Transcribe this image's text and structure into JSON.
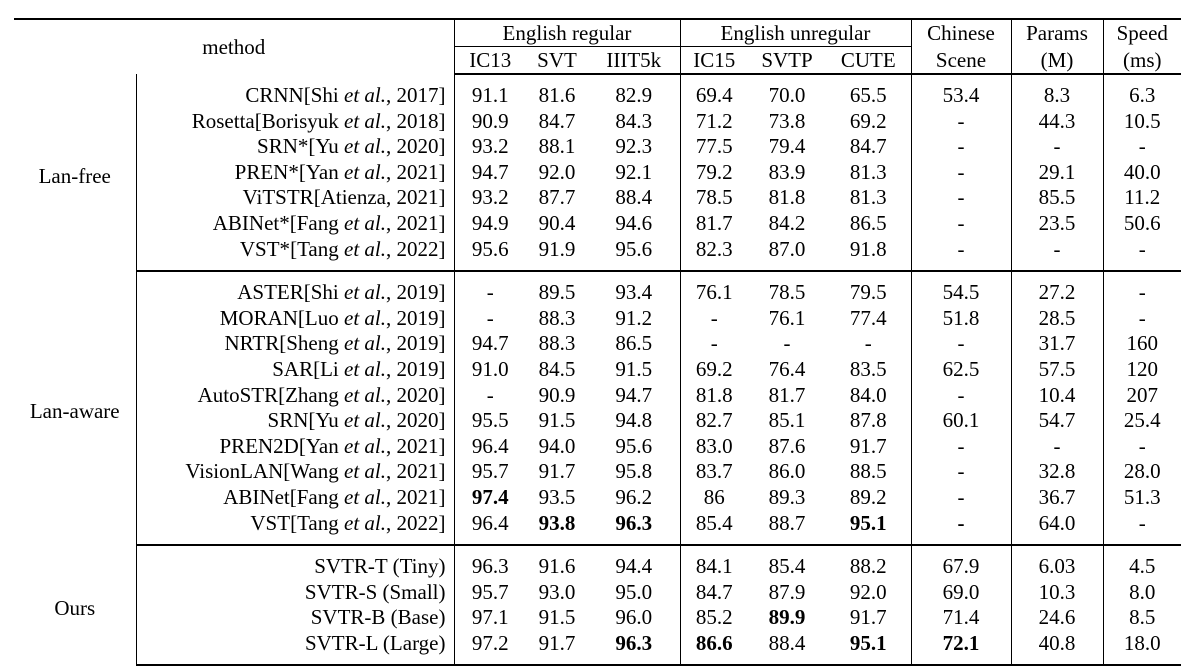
{
  "header": {
    "method": "method",
    "groups": [
      {
        "label": "English regular",
        "cols": [
          "IC13",
          "SVT",
          "IIIT5k"
        ]
      },
      {
        "label": "English unregular",
        "cols": [
          "IC15",
          "SVTP",
          "CUTE"
        ]
      }
    ],
    "chinese": [
      "Chinese",
      "Scene"
    ],
    "params": [
      "Params",
      "(M)"
    ],
    "speed": [
      "Speed",
      "(ms)"
    ]
  },
  "sections": [
    {
      "label": "Lan-free",
      "rows": [
        {
          "name": "CRNN",
          "author": "Shi",
          "etal": true,
          "year": "2017",
          "values": [
            "91.1",
            "81.6",
            "82.9",
            "69.4",
            "70.0",
            "65.5",
            "53.4",
            "8.3",
            "6.3"
          ],
          "bold": []
        },
        {
          "name": "Rosetta",
          "author": "Borisyuk",
          "etal": true,
          "year": "2018",
          "values": [
            "90.9",
            "84.7",
            "84.3",
            "71.2",
            "73.8",
            "69.2",
            "-",
            "44.3",
            "10.5"
          ],
          "bold": []
        },
        {
          "name": "SRN*",
          "author": "Yu",
          "etal": true,
          "year": "2020",
          "values": [
            "93.2",
            "88.1",
            "92.3",
            "77.5",
            "79.4",
            "84.7",
            "-",
            "-",
            "-"
          ],
          "bold": []
        },
        {
          "name": "PREN*",
          "author": "Yan",
          "etal": true,
          "year": "2021",
          "values": [
            "94.7",
            "92.0",
            "92.1",
            "79.2",
            "83.9",
            "81.3",
            "-",
            "29.1",
            "40.0"
          ],
          "bold": []
        },
        {
          "name": "ViTSTR",
          "author": "Atienza",
          "etal": false,
          "year": "2021",
          "values": [
            "93.2",
            "87.7",
            "88.4",
            "78.5",
            "81.8",
            "81.3",
            "-",
            "85.5",
            "11.2"
          ],
          "bold": []
        },
        {
          "name": "ABINet*",
          "author": "Fang",
          "etal": true,
          "year": "2021",
          "values": [
            "94.9",
            "90.4",
            "94.6",
            "81.7",
            "84.2",
            "86.5",
            "-",
            "23.5",
            "50.6"
          ],
          "bold": []
        },
        {
          "name": "VST*",
          "author": "Tang",
          "etal": true,
          "year": "2022",
          "values": [
            "95.6",
            "91.9",
            "95.6",
            "82.3",
            "87.0",
            "91.8",
            "-",
            "-",
            "-"
          ],
          "bold": []
        }
      ]
    },
    {
      "label": "Lan-aware",
      "rows": [
        {
          "name": "ASTER",
          "author": "Shi",
          "etal": true,
          "year": "2019",
          "values": [
            "-",
            "89.5",
            "93.4",
            "76.1",
            "78.5",
            "79.5",
            "54.5",
            "27.2",
            "-"
          ],
          "bold": []
        },
        {
          "name": "MORAN",
          "author": "Luo",
          "etal": true,
          "year": "2019",
          "values": [
            "-",
            "88.3",
            "91.2",
            "-",
            "76.1",
            "77.4",
            "51.8",
            "28.5",
            "-"
          ],
          "bold": []
        },
        {
          "name": "NRTR",
          "author": "Sheng",
          "etal": true,
          "year": "2019",
          "values": [
            "94.7",
            "88.3",
            "86.5",
            "-",
            "-",
            "-",
            "-",
            "31.7",
            "160"
          ],
          "bold": []
        },
        {
          "name": "SAR",
          "author": "Li",
          "etal": true,
          "year": "2019",
          "values": [
            "91.0",
            "84.5",
            "91.5",
            "69.2",
            "76.4",
            "83.5",
            "62.5",
            "57.5",
            "120"
          ],
          "bold": []
        },
        {
          "name": "AutoSTR",
          "author": "Zhang",
          "etal": true,
          "year": "2020",
          "values": [
            "-",
            "90.9",
            "94.7",
            "81.8",
            "81.7",
            "84.0",
            "-",
            "10.4",
            "207"
          ],
          "bold": []
        },
        {
          "name": "SRN",
          "author": "Yu",
          "etal": true,
          "year": "2020",
          "values": [
            "95.5",
            "91.5",
            "94.8",
            "82.7",
            "85.1",
            "87.8",
            "60.1",
            "54.7",
            "25.4"
          ],
          "bold": []
        },
        {
          "name": "PREN2D",
          "author": "Yan",
          "etal": true,
          "year": "2021",
          "values": [
            "96.4",
            "94.0",
            "95.6",
            "83.0",
            "87.6",
            "91.7",
            "-",
            "-",
            "-"
          ],
          "bold": []
        },
        {
          "name": "VisionLAN",
          "author": "Wang",
          "etal": true,
          "year": "2021",
          "values": [
            "95.7",
            "91.7",
            "95.8",
            "83.7",
            "86.0",
            "88.5",
            "-",
            "32.8",
            "28.0"
          ],
          "bold": []
        },
        {
          "name": "ABINet",
          "author": "Fang",
          "etal": true,
          "year": "2021",
          "values": [
            "97.4",
            "93.5",
            "96.2",
            "86",
            "89.3",
            "89.2",
            "-",
            "36.7",
            "51.3"
          ],
          "bold": [
            0
          ]
        },
        {
          "name": "VST",
          "author": "Tang",
          "etal": true,
          "year": "2022",
          "values": [
            "96.4",
            "93.8",
            "96.3",
            "85.4",
            "88.7",
            "95.1",
            "-",
            "64.0",
            "-"
          ],
          "bold": [
            1,
            2,
            5,
            6
          ]
        }
      ]
    },
    {
      "label": "Ours",
      "rows": [
        {
          "name": "SVTR-T (Tiny)",
          "plain": true,
          "values": [
            "96.3",
            "91.6",
            "94.4",
            "84.1",
            "85.4",
            "88.2",
            "67.9",
            "6.03",
            "4.5"
          ],
          "bold": []
        },
        {
          "name": "SVTR-S (Small)",
          "plain": true,
          "values": [
            "95.7",
            "93.0",
            "95.0",
            "84.7",
            "87.9",
            "92.0",
            "69.0",
            "10.3",
            "8.0"
          ],
          "bold": []
        },
        {
          "name": "SVTR-B (Base)",
          "plain": true,
          "values": [
            "97.1",
            "91.5",
            "96.0",
            "85.2",
            "89.9",
            "91.7",
            "71.4",
            "24.6",
            "8.5"
          ],
          "bold": [
            4
          ]
        },
        {
          "name": "SVTR-L (Large)",
          "plain": true,
          "values": [
            "97.2",
            "91.7",
            "96.3",
            "86.6",
            "88.4",
            "95.1",
            "72.1",
            "40.8",
            "18.0"
          ],
          "bold": [
            2,
            3,
            5,
            6
          ]
        }
      ]
    }
  ],
  "etal_text": "et al.",
  "comma": ", "
}
